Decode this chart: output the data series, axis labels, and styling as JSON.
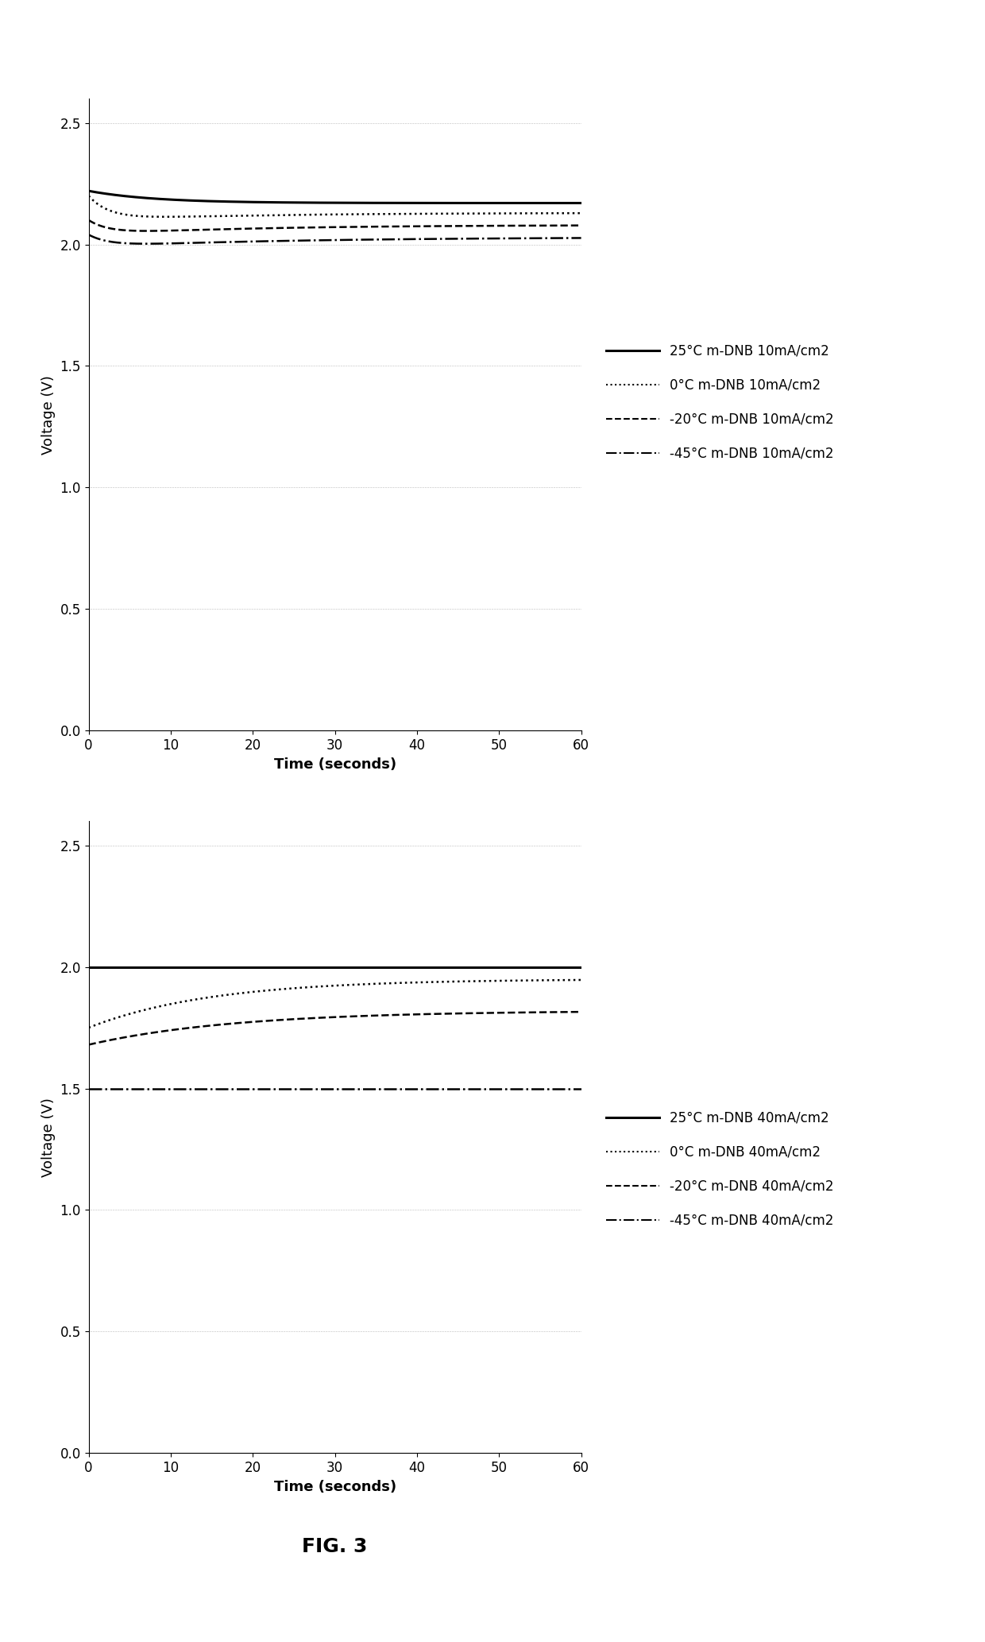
{
  "fig_width": 12.4,
  "fig_height": 20.66,
  "background_color": "#ffffff",
  "top_plot": {
    "ylabel": "Voltage (V)",
    "xlabel": "Time (seconds)",
    "ylim": [
      0,
      2.6
    ],
    "xlim": [
      0,
      60
    ],
    "yticks": [
      0,
      0.5,
      1.0,
      1.5,
      2.0,
      2.5
    ],
    "xticks": [
      0,
      10,
      20,
      30,
      40,
      50,
      60
    ],
    "series": [
      {
        "label": "25°C m-DNB 10mA/cm2",
        "linestyle": "solid",
        "color": "#000000",
        "linewidth": 2.2,
        "start": 2.22,
        "end": 2.17,
        "min_val": 2.16,
        "shape": "decay_to_flat",
        "tau": 8.0
      },
      {
        "label": "0°C m-DNB 10mA/cm2",
        "linestyle": "dotted",
        "color": "#000000",
        "linewidth": 1.8,
        "start": 2.2,
        "end": 2.13,
        "min_val": 2.1,
        "shape": "decay_dip_recover",
        "tau1": 2.5,
        "tau2": 20.0
      },
      {
        "label": "-20°C m-DNB 10mA/cm2",
        "linestyle": "dashed",
        "color": "#000000",
        "linewidth": 1.8,
        "start": 2.1,
        "end": 2.08,
        "min_val": 2.04,
        "shape": "decay_dip_recover",
        "tau1": 2.5,
        "tau2": 20.0
      },
      {
        "label": "-45°C m-DNB 10mA/cm2",
        "linestyle": "dashdot",
        "color": "#000000",
        "linewidth": 1.8,
        "start": 2.04,
        "end": 2.03,
        "min_val": 1.99,
        "shape": "decay_dip_recover",
        "tau1": 2.5,
        "tau2": 25.0
      }
    ],
    "legend_labels": [
      "25°C m-DNB 10mA/cm2",
      "0°C m-DNB 10mA/cm2",
      "-20°C m-DNB 10mA/cm2",
      "-45°C m-DNB 10mA/cm2"
    ],
    "legend_linestyles": [
      "solid",
      "dotted",
      "dashed",
      "dashdot"
    ],
    "legend_linewidths": [
      2.2,
      1.5,
      1.5,
      1.5
    ]
  },
  "bottom_plot": {
    "ylabel": "Voltage (V)",
    "xlabel": "Time (seconds)",
    "ylim": [
      0,
      2.6
    ],
    "xlim": [
      0,
      60
    ],
    "yticks": [
      0,
      0.5,
      1.0,
      1.5,
      2.0,
      2.5
    ],
    "xticks": [
      0,
      10,
      20,
      30,
      40,
      50,
      60
    ],
    "series": [
      {
        "label": "25°C m-DNB 40mA/cm2",
        "linestyle": "solid",
        "color": "#000000",
        "linewidth": 2.2,
        "start": 2.0,
        "end": 2.0,
        "shape": "flat"
      },
      {
        "label": "0°C m-DNB 40mA/cm2",
        "linestyle": "dotted",
        "color": "#000000",
        "linewidth": 1.8,
        "start": 1.75,
        "end": 1.95,
        "shape": "rise_log",
        "tau": 15.0
      },
      {
        "label": "-20°C m-DNB 40mA/cm2",
        "linestyle": "dashed",
        "color": "#000000",
        "linewidth": 1.8,
        "start": 1.68,
        "end": 1.82,
        "shape": "rise_log",
        "tau": 18.0
      },
      {
        "label": "-45°C m-DNB 40mA/cm2",
        "linestyle": "dashdot",
        "color": "#000000",
        "linewidth": 1.8,
        "start": 1.5,
        "end": 1.5,
        "shape": "flat"
      }
    ],
    "legend_labels": [
      "25°C m-DNB 40mA/cm2",
      "0°C m-DNB 40mA/cm2",
      "-20°C m-DNB 40mA/cm2",
      "-45°C m-DNB 40mA/cm2"
    ],
    "legend_linestyles": [
      "solid",
      "dotted",
      "dashed",
      "dashdot"
    ],
    "legend_linewidths": [
      2.2,
      1.5,
      1.5,
      1.5
    ]
  },
  "fig_label": "FIG. 3",
  "fig_label_fontsize": 18,
  "axis_label_fontsize": 13,
  "tick_label_fontsize": 12,
  "legend_fontsize": 12
}
